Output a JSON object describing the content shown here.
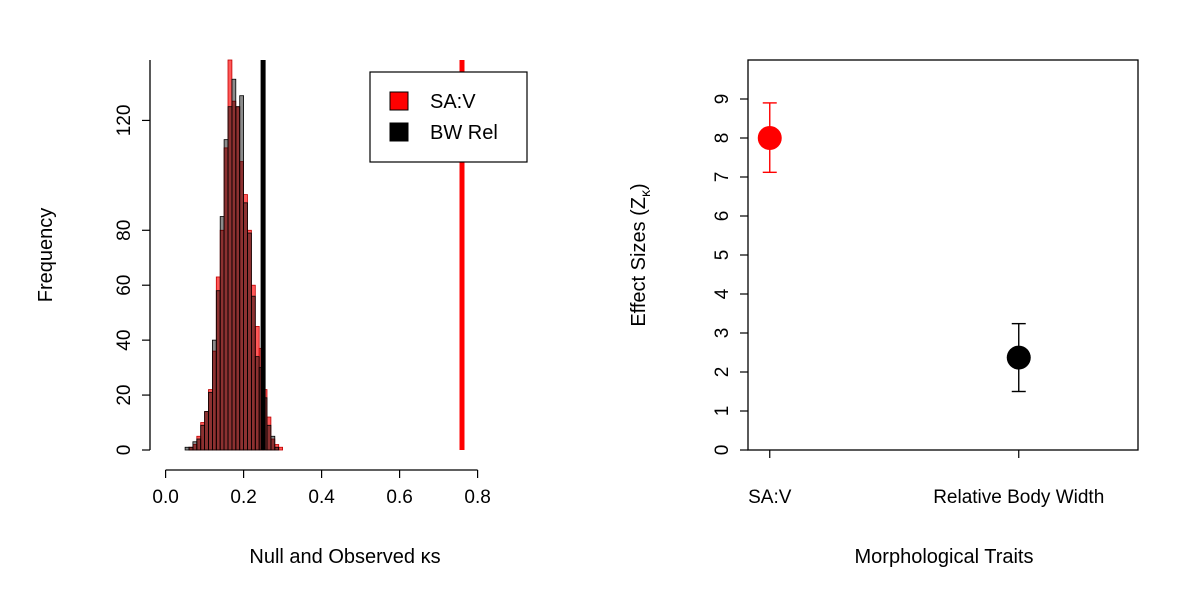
{
  "chart_data": [
    {
      "type": "histogram",
      "xlabel": "Null and Observed κs",
      "ylabel": "Frequency",
      "xlim": [
        -0.04,
        0.96
      ],
      "ylim": [
        0,
        142
      ],
      "xticks": [
        "0.0",
        "0.2",
        "0.4",
        "0.6",
        "0.8"
      ],
      "xtick_values": [
        0.0,
        0.2,
        0.4,
        0.6,
        0.8
      ],
      "yticks": [
        "0",
        "20",
        "40",
        "60",
        "80",
        "120"
      ],
      "ytick_values": [
        0,
        20,
        40,
        60,
        80,
        120
      ],
      "bin_width": 0.01,
      "bin_start": 0.05,
      "grid": false,
      "legend_position": "top-right",
      "series": [
        {
          "name": "SA:V",
          "color": "#ff0000",
          "counts": [
            0,
            1,
            2,
            5,
            10,
            14,
            22,
            36,
            63,
            80,
            110,
            142,
            127,
            125,
            105,
            93,
            80,
            60,
            45,
            37,
            22,
            12,
            4,
            2,
            1
          ],
          "observed": 0.76
        },
        {
          "name": "BW Rel",
          "color": "#000000",
          "counts": [
            1,
            1,
            3,
            4,
            9,
            14,
            21,
            40,
            58,
            85,
            113,
            125,
            135,
            125,
            129,
            90,
            79,
            56,
            34,
            30,
            19,
            9,
            5,
            1,
            0
          ],
          "observed": 0.25
        }
      ]
    },
    {
      "type": "scatter",
      "xlabel": "Morphological Traits",
      "ylabel": "Effect Sizes (Z",
      "ylabel_subscript": "κ",
      "ylabel_close": ")",
      "ylim": [
        0,
        10
      ],
      "yticks": [
        "0",
        "1",
        "2",
        "3",
        "4",
        "5",
        "6",
        "7",
        "8",
        "9"
      ],
      "ytick_values": [
        0,
        1,
        2,
        3,
        4,
        5,
        6,
        7,
        8,
        9
      ],
      "categories": [
        "SA:V",
        "Relative Body Width"
      ],
      "grid": false,
      "points": [
        {
          "category": "SA:V",
          "value": 8.0,
          "lower": 7.12,
          "upper": 8.9,
          "color": "#ff0000"
        },
        {
          "category": "Relative Body Width",
          "value": 2.37,
          "lower": 1.5,
          "upper": 3.24,
          "color": "#000000"
        }
      ]
    }
  ]
}
